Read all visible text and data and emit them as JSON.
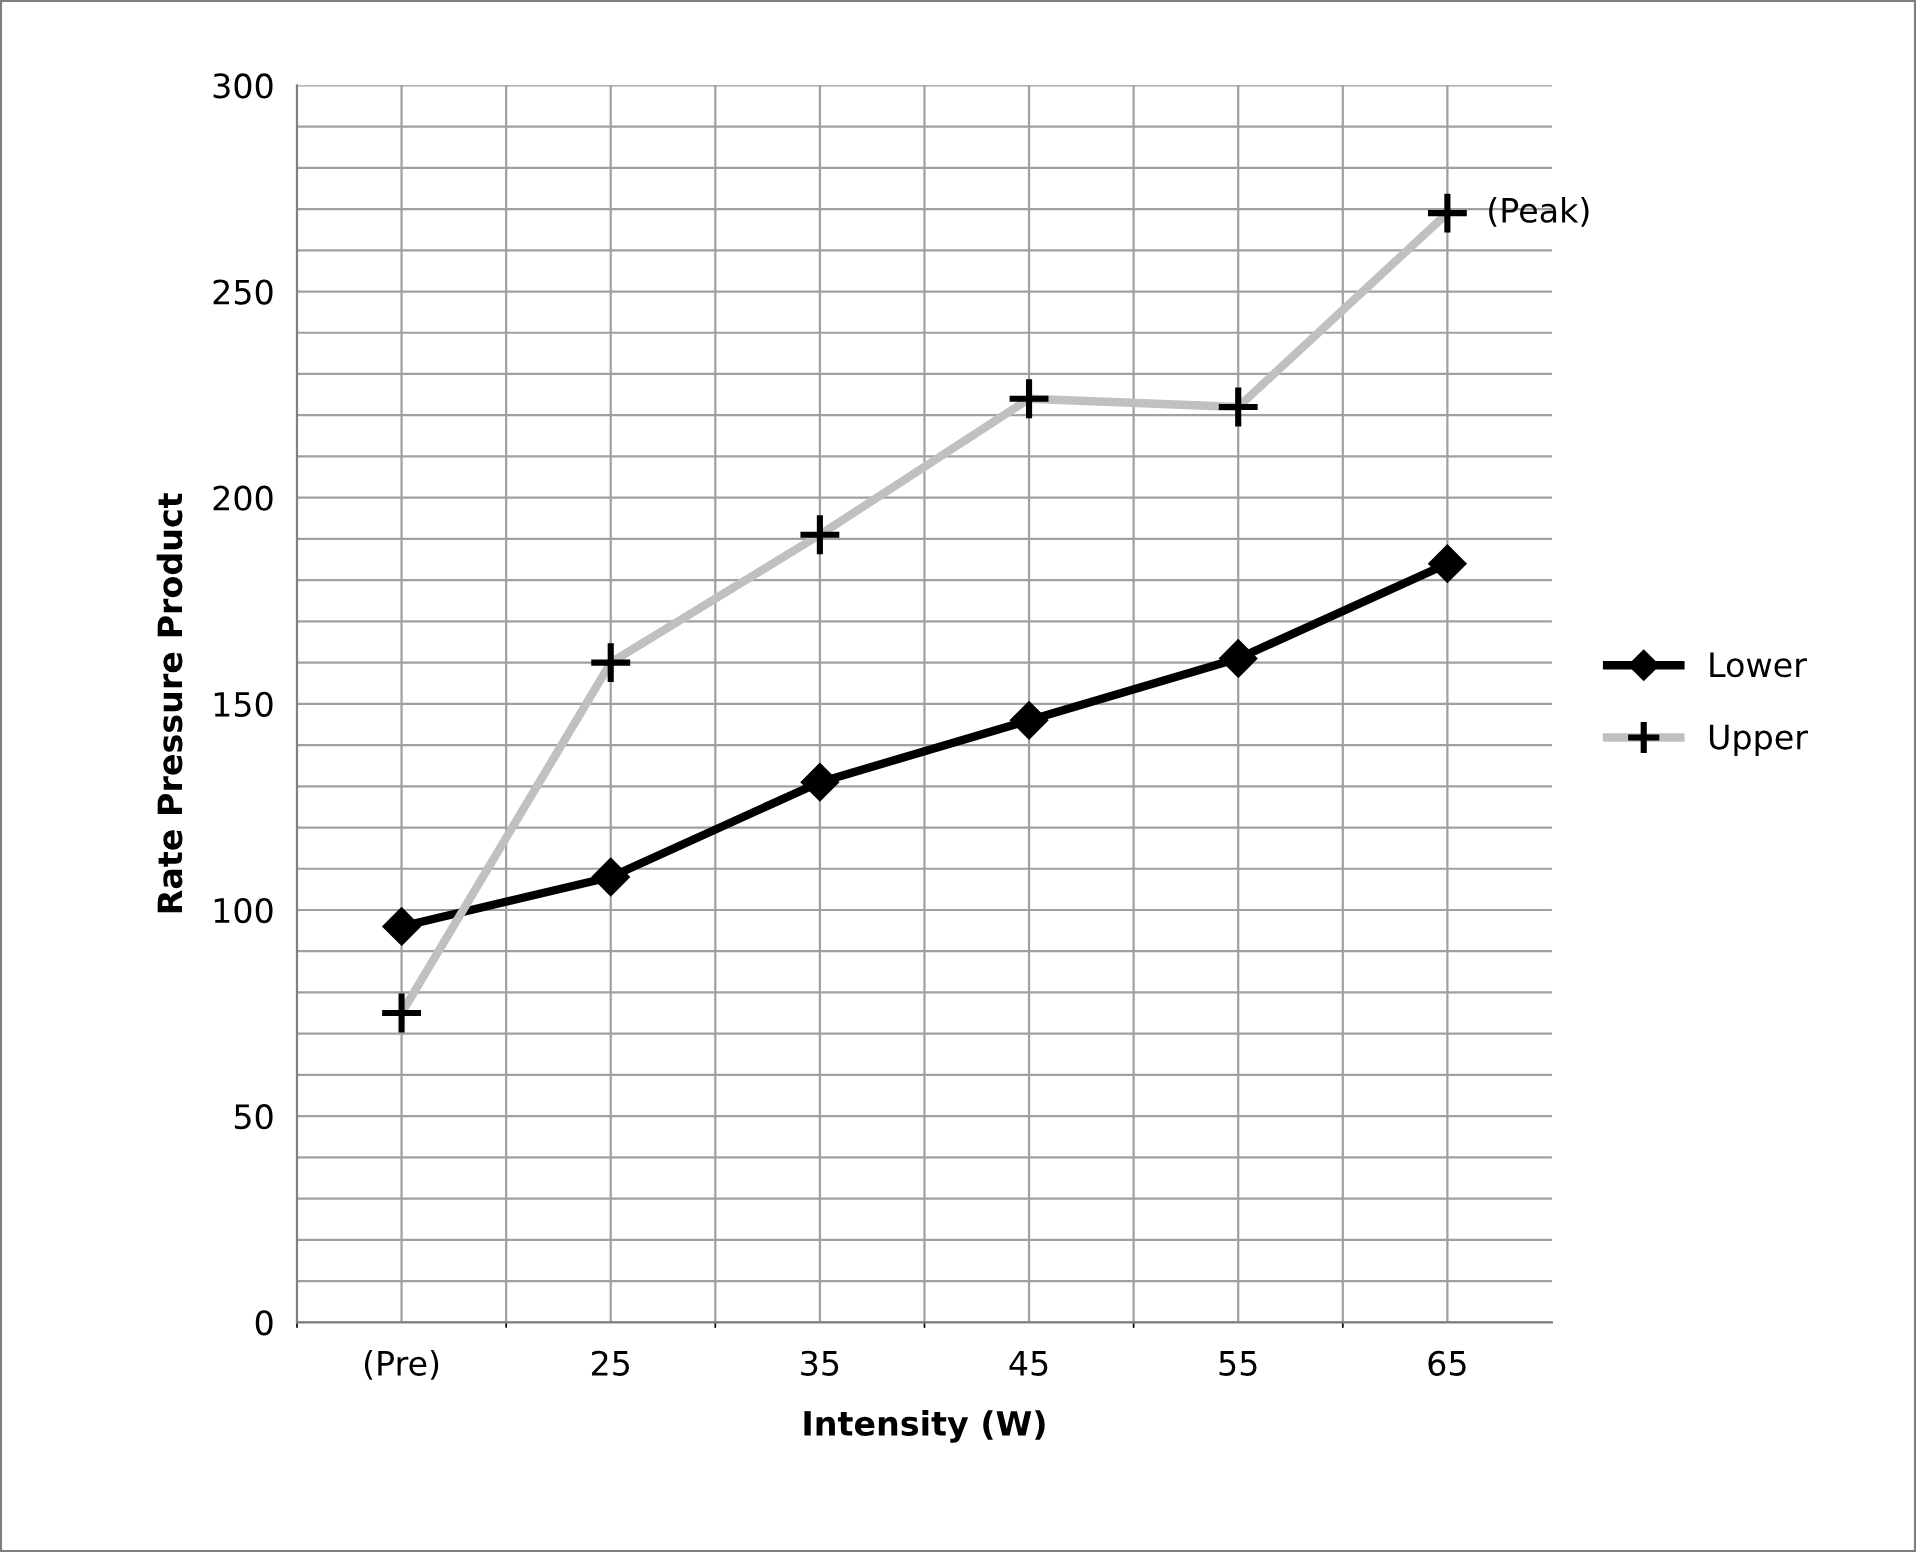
{
  "chart_data": {
    "type": "line",
    "xlabel": "Intensity (W)",
    "ylabel": "Rate Pressure Product",
    "categories": [
      "(Pre)",
      "25",
      "35",
      "45",
      "55",
      "65"
    ],
    "series": [
      {
        "name": "Lower",
        "color": "#000000",
        "values": [
          96,
          108,
          131,
          146,
          161,
          184
        ],
        "marker": "diamond"
      },
      {
        "name": "Upper",
        "color": "#c0c0c0",
        "values": [
          75,
          160,
          191,
          224,
          222,
          269
        ],
        "marker": "cross"
      }
    ],
    "ylim": [
      0,
      300
    ],
    "yticks": [
      0,
      {
        "value": 10,
        "label": null
      },
      {
        "value": 20,
        "label": null
      },
      {
        "value": 30,
        "label": null
      },
      {
        "value": 40,
        "label": null
      },
      50,
      {
        "value": 60,
        "label": null
      },
      {
        "value": 70,
        "label": null
      },
      {
        "value": 80,
        "label": null
      },
      {
        "value": 90,
        "label": null
      },
      100,
      {
        "value": 110,
        "label": null
      },
      {
        "value": 120,
        "label": null
      },
      {
        "value": 130,
        "label": null
      },
      {
        "value": 140,
        "label": null
      },
      150,
      {
        "value": 160,
        "label": null
      },
      {
        "value": 170,
        "label": null
      },
      {
        "value": 180,
        "label": null
      },
      {
        "value": 190,
        "label": null
      },
      200,
      {
        "value": 210,
        "label": null
      },
      {
        "value": 220,
        "label": null
      },
      {
        "value": 230,
        "label": null
      },
      {
        "value": 240,
        "label": null
      },
      250,
      {
        "value": 260,
        "label": null
      },
      {
        "value": 270,
        "label": null
      },
      {
        "value": 280,
        "label": null
      },
      {
        "value": 290,
        "label": null
      },
      300
    ],
    "grid": true,
    "legend": "right",
    "line_style": "solid",
    "annotations": [
      {
        "text": "(Peak)",
        "x": "65",
        "y": 269
      }
    ]
  }
}
